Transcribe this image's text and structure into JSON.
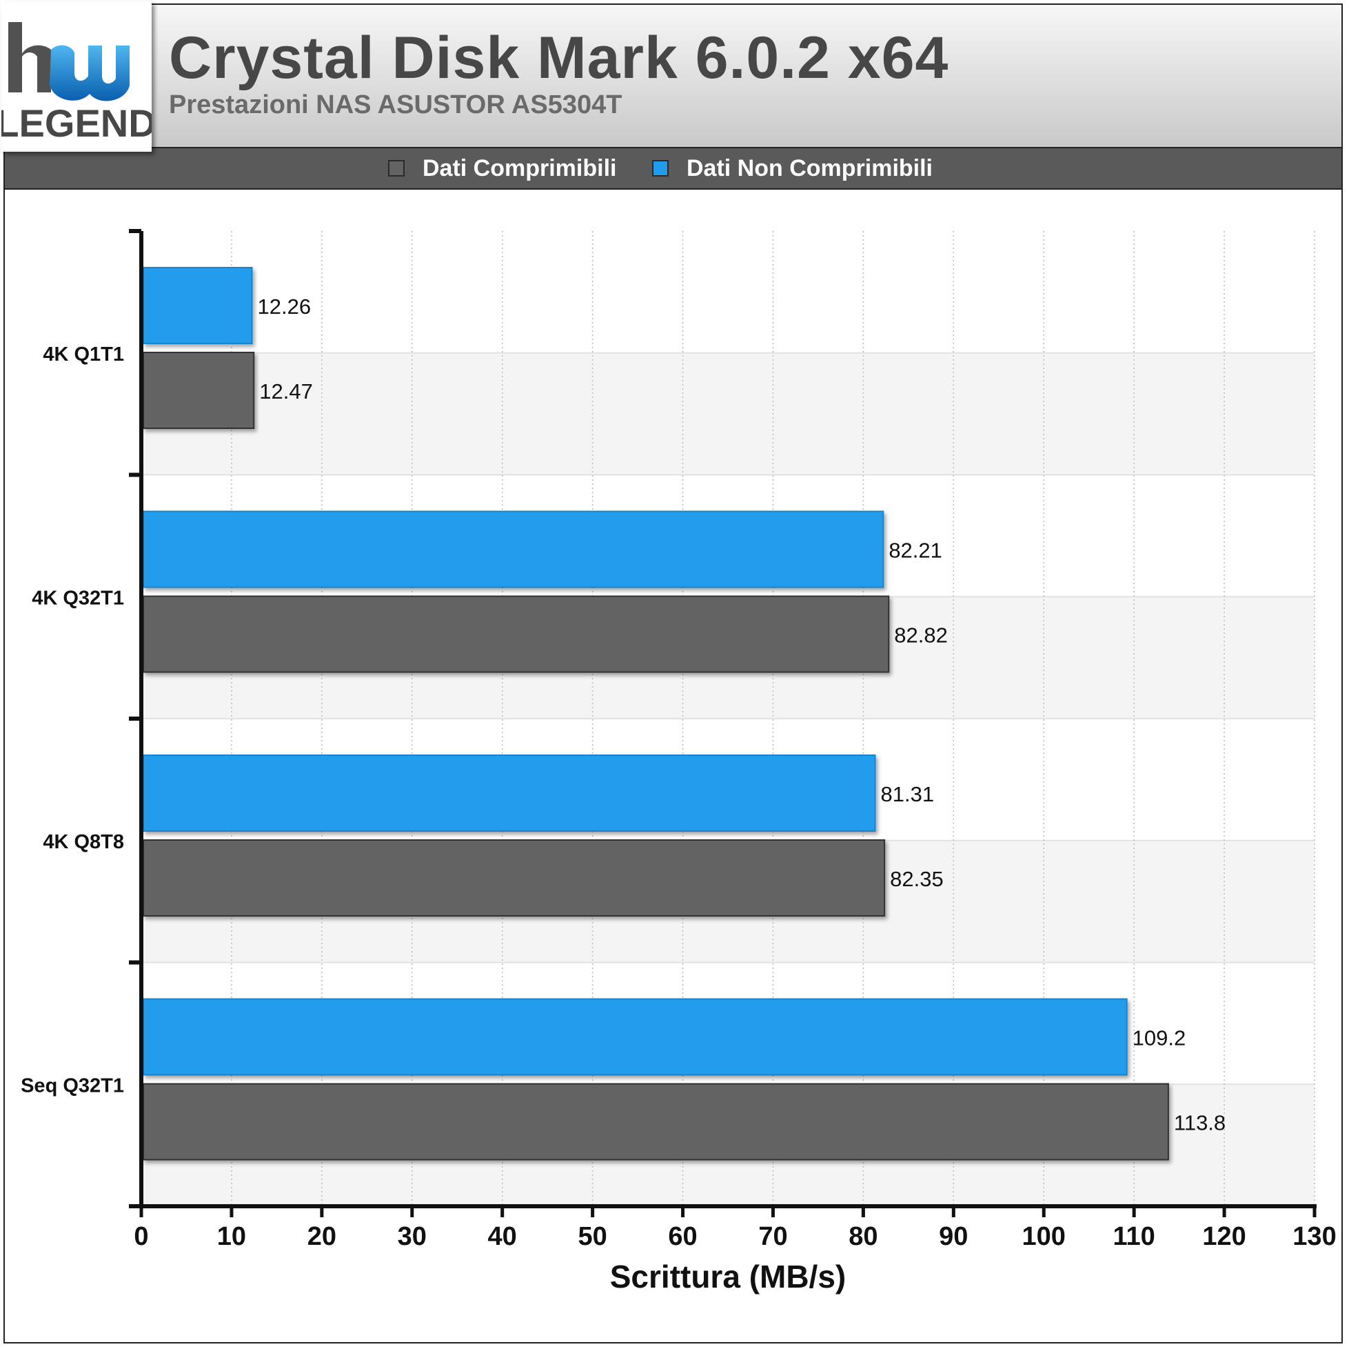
{
  "header": {
    "title": "Crystal Disk Mark 6.0.2 x64",
    "subtitle": "Prestazioni NAS ASUSTOR AS5304T",
    "logo_text_top": "hw",
    "logo_text_bottom": "LEGEND"
  },
  "legend": [
    {
      "label": "Dati Comprimibili",
      "color": "#636363"
    },
    {
      "label": "Dati Non Comprimibili",
      "color": "#219cec"
    }
  ],
  "colors": {
    "compressible": "#636363",
    "non_compressible": "#219cec",
    "band": "#f4f4f4",
    "grid": "#bbbbbb"
  },
  "chart_data": {
    "type": "bar",
    "orientation": "horizontal",
    "categories": [
      "4K Q1T1",
      "4K Q32T1",
      "4K Q8T8",
      "Seq Q32T1"
    ],
    "series": [
      {
        "name": "Dati Non Comprimibili",
        "values": [
          12.26,
          82.21,
          81.31,
          109.2
        ],
        "labels": [
          "12.26",
          "82.21",
          "81.31",
          "109.2"
        ]
      },
      {
        "name": "Dati Comprimibili",
        "values": [
          12.47,
          82.82,
          82.35,
          113.8
        ],
        "labels": [
          "12.47",
          "82.82",
          "82.35",
          "113.8"
        ]
      }
    ],
    "xlabel": "Scrittura (MB/s)",
    "ylabel": "",
    "xlim": [
      0,
      130
    ],
    "xticks": [
      0,
      10,
      20,
      30,
      40,
      50,
      60,
      70,
      80,
      90,
      100,
      110,
      120,
      130
    ],
    "grid": "vertical dotted",
    "legend_position": "top"
  }
}
